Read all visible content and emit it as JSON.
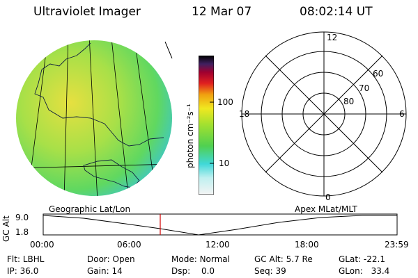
{
  "header": {
    "title": "Ultraviolet Imager",
    "date": "12 Mar 07",
    "time": "08:02:14 UT"
  },
  "colorbar": {
    "label": "photon cm⁻²s⁻¹",
    "ticks": [
      "100",
      "10"
    ]
  },
  "polar": {
    "mlt_labels": {
      "top": "12",
      "left": "18",
      "right": "6",
      "bottom": "0"
    },
    "lat_labels": [
      "60",
      "70",
      "80"
    ]
  },
  "left_plot_label": "Geographic Lat/Lon",
  "right_plot_label": "Apex MLat/MLT",
  "altitude_plot": {
    "ylabel": "GC Alt",
    "yticks": [
      "9.0",
      "1.8"
    ],
    "xticks": [
      "00:00",
      "06:00",
      "12:00",
      "18:00",
      "23:59"
    ]
  },
  "status": {
    "filter": {
      "label": "Flt:",
      "value": "LBHL"
    },
    "ip": {
      "label": "IP:",
      "value": "36.0"
    },
    "door": {
      "label": "Door:",
      "value": "Open"
    },
    "gain": {
      "label": "Gain:",
      "value": "14"
    },
    "mode": {
      "label": "Mode:",
      "value": "Normal"
    },
    "dsp": {
      "label": "Dsp:",
      "value": "0.0"
    },
    "gc_alt": {
      "label": "GC Alt:",
      "value": "5.7 Re"
    },
    "seq": {
      "label": "Seq:",
      "value": "39"
    },
    "glat": {
      "label": "GLat:",
      "value": "-22.1"
    },
    "glon": {
      "label": "GLon:",
      "value": "33.4"
    }
  },
  "colors": {
    "image_fill": "#7fe04a",
    "accent_line": "#d00000"
  }
}
